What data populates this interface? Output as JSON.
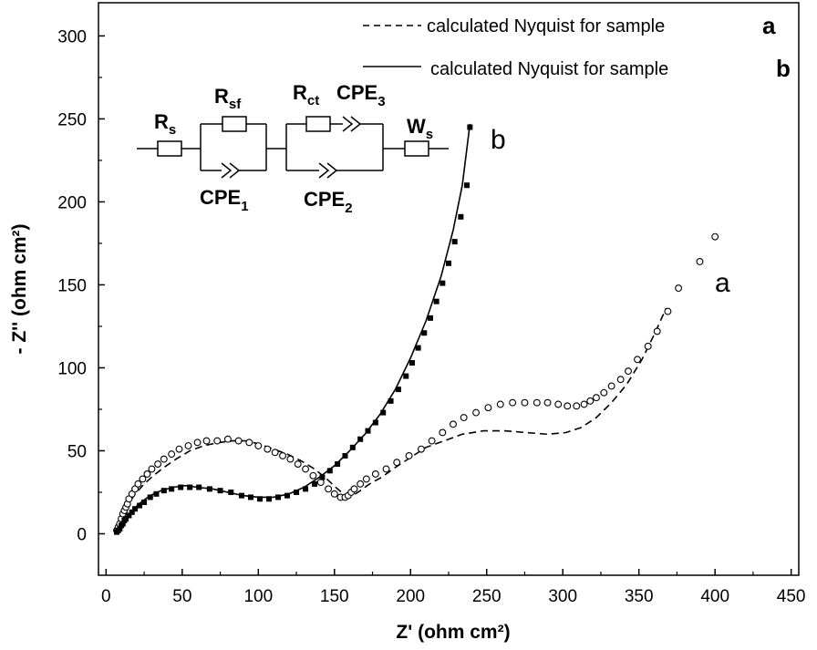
{
  "chart_data": {
    "type": "scatter",
    "xlabel": "Z' (ohm cm²)",
    "ylabel": "- Z'' (ohm cm²)",
    "xlim": [
      -5,
      455
    ],
    "ylim": [
      -25,
      320
    ],
    "xticks": [
      "0",
      "50",
      "100",
      "150",
      "200",
      "250",
      "300",
      "350",
      "400",
      "450"
    ],
    "yticks": [
      "0",
      "50",
      "100",
      "150",
      "200",
      "250",
      "300"
    ],
    "xtick_values": [
      0,
      50,
      100,
      150,
      200,
      250,
      300,
      350,
      400,
      450
    ],
    "ytick_values": [
      0,
      50,
      100,
      150,
      200,
      250,
      300
    ],
    "legend": {
      "placement": "top-right",
      "entries": [
        {
          "text": "calculated Nyquist for sample",
          "key": "a",
          "style": "dashed"
        },
        {
          "text": "calculated Nyquist for sample",
          "key": "b",
          "style": "solid"
        }
      ]
    },
    "annotations": [
      {
        "text": "b",
        "x": 254,
        "y": 240
      },
      {
        "text": "a",
        "x": 408,
        "y": 153
      }
    ],
    "series": [
      {
        "name": "a",
        "marker": "open-circle",
        "x": [
          7,
          8,
          9,
          10,
          11,
          12,
          13,
          14,
          15,
          17,
          19,
          21,
          24,
          27,
          30,
          34,
          38,
          43,
          48,
          54,
          60,
          66,
          73,
          80,
          87,
          94,
          100,
          106,
          111,
          116,
          121,
          126,
          131,
          136,
          141,
          146,
          150,
          154,
          157,
          159,
          161,
          163,
          167,
          171,
          177,
          184,
          191,
          199,
          207,
          214,
          221,
          228,
          235,
          243,
          251,
          259,
          267,
          275,
          283,
          290,
          297,
          303,
          309,
          314,
          318,
          322,
          327,
          332,
          338,
          343,
          349,
          356,
          362,
          369,
          376,
          390,
          400
        ],
        "y": [
          2,
          4,
          6,
          9,
          12,
          14,
          16,
          18,
          21,
          24,
          27,
          30,
          33,
          36,
          39,
          42,
          45,
          48,
          51,
          53,
          55,
          56,
          56,
          57,
          56,
          55,
          53,
          51,
          49,
          47,
          45,
          42,
          39,
          35,
          31,
          27,
          24,
          22,
          22,
          23,
          25,
          27,
          30,
          33,
          36,
          39,
          43,
          47,
          51,
          56,
          61,
          66,
          70,
          73,
          76,
          78,
          79,
          79,
          79,
          79,
          78,
          77,
          77,
          78,
          80,
          82,
          85,
          89,
          93,
          98,
          105,
          113,
          122,
          134,
          148,
          164,
          179
        ]
      },
      {
        "name": "b",
        "marker": "filled-square",
        "x": [
          7,
          8,
          9,
          10,
          11,
          12,
          13,
          15,
          17,
          19,
          22,
          25,
          29,
          33,
          38,
          43,
          49,
          55,
          61,
          68,
          75,
          82,
          89,
          95,
          101,
          107,
          113,
          119,
          125,
          131,
          137,
          142,
          147,
          152,
          157,
          162,
          167,
          172,
          177,
          182,
          187,
          192,
          197,
          201,
          205,
          209,
          213,
          217,
          221,
          225,
          229,
          233,
          237,
          239
        ],
        "y": [
          1,
          2,
          3,
          5,
          6,
          8,
          9,
          11,
          13,
          15,
          17,
          19,
          22,
          24,
          26,
          27,
          28,
          28,
          28,
          27,
          26,
          25,
          23,
          22,
          21,
          21,
          22,
          23,
          25,
          27,
          30,
          34,
          38,
          42,
          47,
          52,
          57,
          62,
          67,
          73,
          80,
          87,
          95,
          103,
          112,
          121,
          130,
          140,
          151,
          163,
          176,
          191,
          210,
          245
        ]
      },
      {
        "name": "calculated a",
        "line": "dashed",
        "x": [
          7,
          8,
          9,
          11,
          13,
          16,
          20,
          25,
          31,
          38,
          46,
          55,
          64,
          74,
          83,
          92,
          101,
          110,
          119,
          128,
          137,
          145,
          152,
          156,
          159,
          162,
          167,
          173,
          181,
          190,
          200,
          210,
          222,
          234,
          248,
          262,
          276,
          290,
          302,
          312,
          322,
          332,
          342,
          352,
          360,
          368
        ],
        "y": [
          1,
          4,
          8,
          12,
          16,
          20,
          25,
          30,
          35,
          40,
          45,
          50,
          53,
          55,
          56,
          56,
          54,
          51,
          48,
          44,
          39,
          33,
          27,
          24,
          22,
          23,
          26,
          30,
          34,
          40,
          46,
          52,
          56,
          60,
          62,
          62,
          61,
          60,
          61,
          64,
          70,
          79,
          90,
          105,
          120,
          136
        ]
      },
      {
        "name": "calculated b",
        "line": "solid",
        "x": [
          7,
          9,
          11,
          14,
          18,
          23,
          29,
          36,
          44,
          52,
          60,
          70,
          80,
          90,
          100,
          110,
          120,
          130,
          140,
          150,
          160,
          170,
          180,
          190,
          200,
          210,
          220,
          228,
          234,
          239
        ],
        "y": [
          1,
          4,
          7,
          11,
          15,
          19,
          23,
          26,
          28,
          29,
          28,
          27,
          25,
          23,
          22,
          22,
          24,
          28,
          34,
          41,
          50,
          60,
          72,
          87,
          106,
          128,
          155,
          183,
          210,
          247
        ]
      }
    ]
  },
  "circuit": {
    "elements": [
      {
        "id": "rs",
        "label": "R",
        "sub": "s"
      },
      {
        "id": "rsf",
        "label": "R",
        "sub": "sf"
      },
      {
        "id": "cpe1",
        "label": "CPE",
        "sub": "1"
      },
      {
        "id": "rct",
        "label": "R",
        "sub": "ct"
      },
      {
        "id": "cpe3",
        "label": "CPE",
        "sub": "3"
      },
      {
        "id": "cpe2",
        "label": "CPE",
        "sub": "2"
      },
      {
        "id": "ws",
        "label": "W",
        "sub": "s"
      }
    ]
  }
}
